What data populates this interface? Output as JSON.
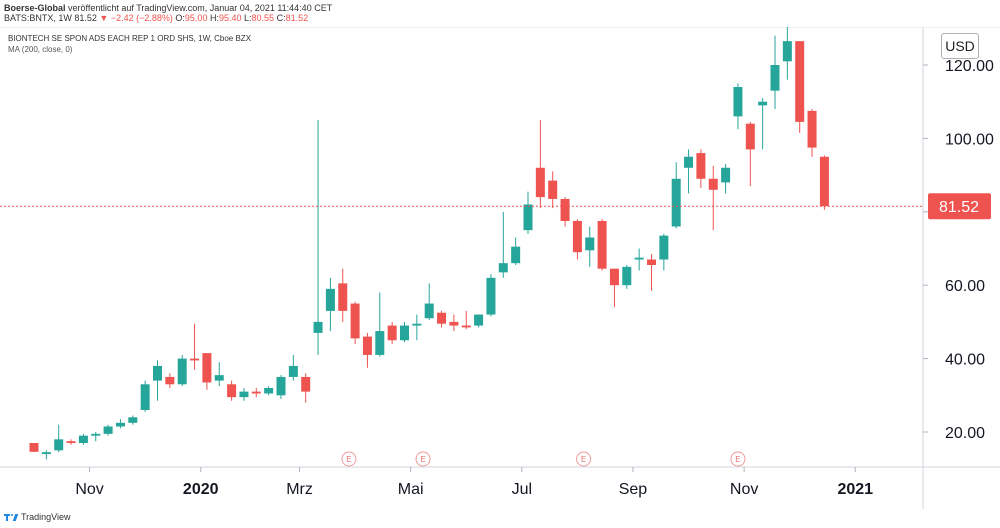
{
  "header": {
    "author": "Boerse-Global",
    "published": "veröffentlicht auf TradingView.com, Januar 04, 2021 11:44:40 CET",
    "symbol": "BATS:BNTX, 1W",
    "last": "81.52",
    "change": "−2.42 (−2.88%)",
    "open_label": "O:",
    "open": "95.00",
    "high_label": "H:",
    "high": "95.40",
    "low_label": "L:",
    "low": "80.55",
    "close_label": "C:",
    "close": "81.52"
  },
  "chart_title": "BIONTECH SE SPON ADS EACH REP 1 ORD SHS, 1W, Cboe BZX",
  "indicator_label": "MA (200, close, 0)",
  "currency_button": "USD",
  "last_price_label": "81.52",
  "footer": {
    "brand": "TradingView"
  },
  "colors": {
    "up": "#26a69a",
    "down": "#ef5350",
    "grid": "#f0f3fa",
    "axis_text": "#131722"
  },
  "chart_data": {
    "type": "candlestick",
    "title": "BIONTECH SE SPON ADS EACH REP 1 ORD SHS, 1W, Cboe BZX",
    "interval": "1W",
    "y_ticks": [
      20,
      40,
      60,
      80,
      100,
      120
    ],
    "y_tick_labels": [
      "20.00",
      "40.00",
      "60.00",
      "100.00",
      "120.00"
    ],
    "ylim": [
      10,
      138
    ],
    "x_labels": [
      {
        "label": "Nov",
        "index": 4.5
      },
      {
        "label": "2020",
        "index": 13.5
      },
      {
        "label": "Mrz",
        "index": 21.5
      },
      {
        "label": "Mai",
        "index": 30.5
      },
      {
        "label": "Jul",
        "index": 39.5
      },
      {
        "label": "Sep",
        "index": 48.5
      },
      {
        "label": "Nov",
        "index": 57.5
      },
      {
        "label": "2021",
        "index": 66.5
      }
    ],
    "x_label_bold": [
      "2020",
      "2021"
    ],
    "earnings_markers": [
      {
        "label": "E",
        "index": 25.5
      },
      {
        "label": "E",
        "index": 31.5
      },
      {
        "label": "E",
        "index": 44.5
      },
      {
        "label": "E",
        "index": 57
      }
    ],
    "last_price": 81.52,
    "candles": [
      {
        "o": 17.0,
        "h": 17.0,
        "l": 14.5,
        "c": 14.6
      },
      {
        "o": 14.0,
        "h": 15.0,
        "l": 12.5,
        "c": 14.5
      },
      {
        "o": 15.0,
        "h": 22.0,
        "l": 14.5,
        "c": 18.0
      },
      {
        "o": 17.5,
        "h": 18.0,
        "l": 16.5,
        "c": 17.0
      },
      {
        "o": 17.0,
        "h": 19.5,
        "l": 16.5,
        "c": 19.0
      },
      {
        "o": 19.0,
        "h": 20.0,
        "l": 17.5,
        "c": 19.5
      },
      {
        "o": 19.5,
        "h": 22.0,
        "l": 19.0,
        "c": 21.5
      },
      {
        "o": 21.5,
        "h": 23.5,
        "l": 21.0,
        "c": 22.5
      },
      {
        "o": 22.5,
        "h": 24.5,
        "l": 22.0,
        "c": 24.0
      },
      {
        "o": 26.0,
        "h": 34.0,
        "l": 25.5,
        "c": 33.0
      },
      {
        "o": 34.0,
        "h": 39.5,
        "l": 28.5,
        "c": 38.0
      },
      {
        "o": 35.0,
        "h": 36.0,
        "l": 32.0,
        "c": 33.0
      },
      {
        "o": 33.0,
        "h": 41.0,
        "l": 32.5,
        "c": 40.0
      },
      {
        "o": 40.0,
        "h": 49.5,
        "l": 37.0,
        "c": 39.5
      },
      {
        "o": 41.5,
        "h": 41.5,
        "l": 31.5,
        "c": 33.5
      },
      {
        "o": 34.0,
        "h": 39.0,
        "l": 32.5,
        "c": 35.5
      },
      {
        "o": 33.0,
        "h": 34.0,
        "l": 28.5,
        "c": 29.5
      },
      {
        "o": 29.5,
        "h": 32.0,
        "l": 28.5,
        "c": 31.0
      },
      {
        "o": 31.0,
        "h": 32.0,
        "l": 29.5,
        "c": 30.5
      },
      {
        "o": 30.5,
        "h": 32.5,
        "l": 30.0,
        "c": 32.0
      },
      {
        "o": 30.0,
        "h": 35.5,
        "l": 29.0,
        "c": 35.0
      },
      {
        "o": 35.0,
        "h": 41.0,
        "l": 34.0,
        "c": 38.0
      },
      {
        "o": 35.0,
        "h": 36.0,
        "l": 28.0,
        "c": 31.0
      },
      {
        "o": 47.0,
        "h": 105.0,
        "l": 41.0,
        "c": 50.0
      },
      {
        "o": 53.0,
        "h": 62.0,
        "l": 47.5,
        "c": 59.0
      },
      {
        "o": 60.5,
        "h": 64.5,
        "l": 50.0,
        "c": 53.0
      },
      {
        "o": 55.0,
        "h": 55.5,
        "l": 44.0,
        "c": 45.5
      },
      {
        "o": 46.0,
        "h": 47.0,
        "l": 37.5,
        "c": 41.0
      },
      {
        "o": 41.0,
        "h": 58.0,
        "l": 40.5,
        "c": 47.5
      },
      {
        "o": 49.0,
        "h": 50.0,
        "l": 44.0,
        "c": 45.0
      },
      {
        "o": 45.0,
        "h": 50.0,
        "l": 44.5,
        "c": 49.0
      },
      {
        "o": 49.0,
        "h": 52.0,
        "l": 45.0,
        "c": 49.5
      },
      {
        "o": 51.0,
        "h": 60.5,
        "l": 50.5,
        "c": 55.0
      },
      {
        "o": 52.5,
        "h": 53.0,
        "l": 48.5,
        "c": 49.5
      },
      {
        "o": 50.0,
        "h": 52.0,
        "l": 47.5,
        "c": 49.0
      },
      {
        "o": 49.0,
        "h": 53.0,
        "l": 48.0,
        "c": 48.5
      },
      {
        "o": 49.0,
        "h": 52.0,
        "l": 48.5,
        "c": 52.0
      },
      {
        "o": 52.0,
        "h": 63.0,
        "l": 51.5,
        "c": 62.0
      },
      {
        "o": 63.5,
        "h": 80.0,
        "l": 62.0,
        "c": 66.0
      },
      {
        "o": 66.0,
        "h": 73.0,
        "l": 65.5,
        "c": 70.5
      },
      {
        "o": 75.0,
        "h": 85.5,
        "l": 74.0,
        "c": 82.0
      },
      {
        "o": 92.0,
        "h": 105.0,
        "l": 81.0,
        "c": 84.0
      },
      {
        "o": 88.5,
        "h": 91.0,
        "l": 81.0,
        "c": 83.5
      },
      {
        "o": 83.5,
        "h": 84.0,
        "l": 76.0,
        "c": 77.5
      },
      {
        "o": 77.5,
        "h": 78.0,
        "l": 67.0,
        "c": 69.0
      },
      {
        "o": 69.5,
        "h": 76.0,
        "l": 65.0,
        "c": 73.0
      },
      {
        "o": 77.5,
        "h": 78.0,
        "l": 64.0,
        "c": 64.5
      },
      {
        "o": 64.5,
        "h": 64.5,
        "l": 54.0,
        "c": 60.0
      },
      {
        "o": 60.0,
        "h": 65.5,
        "l": 59.0,
        "c": 65.0
      },
      {
        "o": 67.0,
        "h": 70.0,
        "l": 64.0,
        "c": 67.5
      },
      {
        "o": 67.0,
        "h": 68.5,
        "l": 58.5,
        "c": 65.5
      },
      {
        "o": 67.0,
        "h": 74.0,
        "l": 64.0,
        "c": 73.5
      },
      {
        "o": 76.0,
        "h": 93.5,
        "l": 75.5,
        "c": 89.0
      },
      {
        "o": 92.0,
        "h": 97.0,
        "l": 85.0,
        "c": 95.0
      },
      {
        "o": 96.0,
        "h": 97.0,
        "l": 86.5,
        "c": 89.0
      },
      {
        "o": 89.0,
        "h": 92.5,
        "l": 75.0,
        "c": 86.0
      },
      {
        "o": 88.0,
        "h": 93.0,
        "l": 85.0,
        "c": 92.0
      },
      {
        "o": 106.0,
        "h": 115.0,
        "l": 102.5,
        "c": 114.0
      },
      {
        "o": 104.0,
        "h": 104.5,
        "l": 87.0,
        "c": 97.0
      },
      {
        "o": 109.0,
        "h": 111.0,
        "l": 97.0,
        "c": 110.0
      },
      {
        "o": 113.0,
        "h": 128.0,
        "l": 108.0,
        "c": 120.0
      },
      {
        "o": 121.0,
        "h": 131.0,
        "l": 116.0,
        "c": 126.5
      },
      {
        "o": 126.5,
        "h": 126.5,
        "l": 101.5,
        "c": 104.5
      },
      {
        "o": 107.5,
        "h": 108.0,
        "l": 95.0,
        "c": 97.5
      },
      {
        "o": 95.0,
        "h": 95.4,
        "l": 80.55,
        "c": 81.52
      }
    ]
  }
}
